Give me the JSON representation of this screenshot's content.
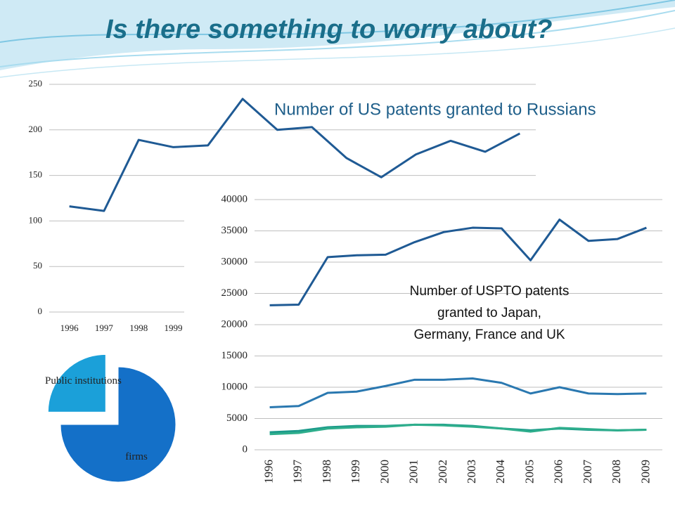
{
  "title": "Is there something to worry about?",
  "chart_data": [
    {
      "type": "line",
      "title": "Number of US patents granted to Russians",
      "categories": [
        "1996",
        "1997",
        "1998",
        "1999",
        null,
        null,
        null,
        null,
        null,
        null,
        null,
        null,
        null,
        null
      ],
      "series": [
        {
          "color": "#1f5a94",
          "values": [
            116,
            111,
            189,
            181,
            183,
            234,
            200,
            203,
            169,
            148,
            173,
            188,
            176,
            196
          ]
        }
      ],
      "ylim": [
        0,
        250
      ],
      "yticks": [
        0,
        50,
        100,
        150,
        200,
        250
      ],
      "grid": true
    },
    {
      "type": "pie",
      "categories": [
        "Public institutions",
        "firms"
      ],
      "values": [
        25,
        75
      ],
      "colors": [
        "#1ba0d9",
        "#1470c8"
      ]
    },
    {
      "type": "line",
      "annotation": [
        "Number of USPTO patents",
        "granted to Japan,",
        "Germany, France and UK"
      ],
      "categories": [
        "1996",
        "1997",
        "1998",
        "1999",
        "2000",
        "2001",
        "2002",
        "2003",
        "2004",
        "2005",
        "2006",
        "2007",
        "2008",
        "2009"
      ],
      "series": [
        {
          "color": "#1f5a94",
          "values": [
            23100,
            23200,
            30800,
            31100,
            31200,
            33200,
            34800,
            35500,
            35400,
            30300,
            36800,
            33400,
            33700,
            35500
          ]
        },
        {
          "color": "#2a78b0",
          "values": [
            6800,
            7000,
            9100,
            9300,
            10200,
            11200,
            11200,
            11400,
            10700,
            9000,
            10000,
            9000,
            8900,
            9000
          ]
        },
        {
          "color": "#1b9a8a",
          "values": [
            2800,
            3000,
            3600,
            3800,
            3800,
            4000,
            4000,
            3800,
            3400,
            3100,
            3400,
            3200,
            3100,
            3200
          ]
        },
        {
          "color": "#2eae8c",
          "values": [
            2500,
            2700,
            3400,
            3600,
            3700,
            4000,
            3900,
            3700,
            3400,
            2900,
            3500,
            3300,
            3100,
            3200
          ]
        }
      ],
      "ylim": [
        0,
        40000
      ],
      "yticks": [
        0,
        5000,
        10000,
        15000,
        20000,
        25000,
        30000,
        35000,
        40000
      ],
      "grid": true
    }
  ]
}
